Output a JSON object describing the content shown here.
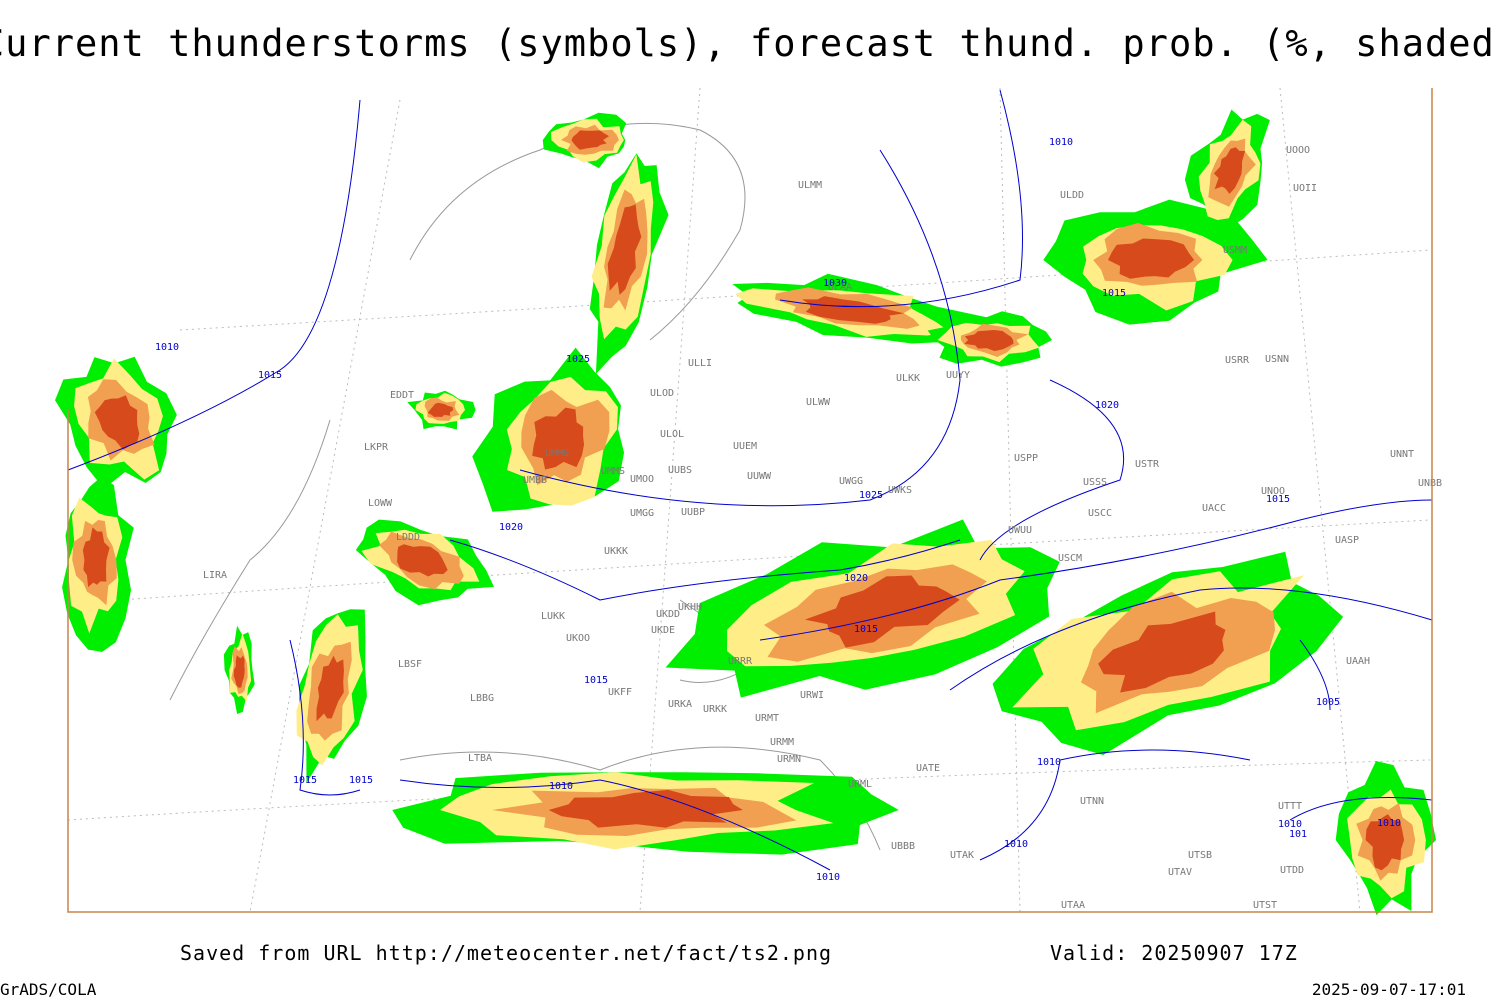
{
  "title": "Current thunderstorms (symbols), forecast thund. prob. (%, shaded)",
  "footer": {
    "source": "Saved from URL http://meteocenter.net/fact/ts2.png",
    "valid": "Valid: 20250907 17Z",
    "software": "GrADS/COLA",
    "timestamp": "2025-09-07-17:01"
  },
  "isobar_labels": [
    "1010",
    "1015",
    "1025",
    "1030",
    "1010",
    "1015",
    "1020",
    "1020",
    "1025",
    "1015",
    "1020",
    "1015",
    "1015",
    "1015",
    "1015",
    "1010",
    "1010",
    "1010",
    "1010",
    "1005",
    "1010",
    "1010",
    "101"
  ],
  "stations": [
    "EDDT",
    "LKPR",
    "LOWW",
    "LDDD",
    "LIRA",
    "LBSF",
    "LBBG",
    "LTBA",
    "LUKK",
    "UKKK",
    "UKOO",
    "UKFF",
    "UKDE",
    "UKDD",
    "UKHH",
    "UMMS",
    "UMOO",
    "UUBS",
    "UMGG",
    "UUBP",
    "UMMG",
    "UMBB",
    "ULOL",
    "ULOD",
    "ULLI",
    "UUEM",
    "UUWW",
    "ULWW",
    "UWGG",
    "UWKS",
    "ULKK",
    "UUYY",
    "ULMM",
    "ULAA",
    "ULDD",
    "USMM",
    "USPP",
    "USSS",
    "USTR",
    "USCC",
    "USCM",
    "UWUU",
    "UACC",
    "UNOO",
    "UNBB",
    "UNNT",
    "UASP",
    "UAAH",
    "UTAK",
    "UTAV",
    "UTSB",
    "UTTT",
    "UTDD",
    "UTST",
    "UTAA",
    "UBBB",
    "UATE",
    "UTNN",
    "URMT",
    "URKK",
    "URKA",
    "URMM",
    "URMN",
    "URML",
    "URWI",
    "URRR",
    "USNN",
    "USRR",
    "UOOO",
    "UOII"
  ]
}
